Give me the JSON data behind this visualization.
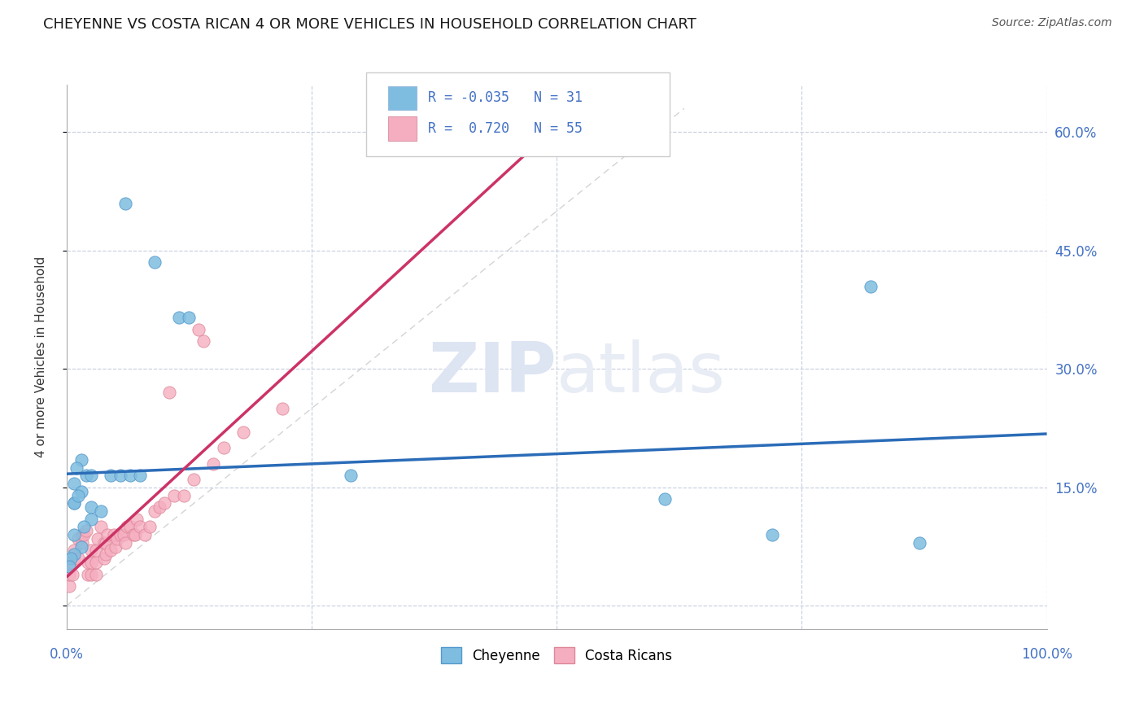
{
  "title": "CHEYENNE VS COSTA RICAN 4 OR MORE VEHICLES IN HOUSEHOLD CORRELATION CHART",
  "source": "Source: ZipAtlas.com",
  "ylabel_label": "4 or more Vehicles in Household",
  "legend_cheyenne": "Cheyenne",
  "legend_costa": "Costa Ricans",
  "r_cheyenne": -0.035,
  "n_cheyenne": 31,
  "r_costa": 0.72,
  "n_costa": 55,
  "xmin": 0.0,
  "xmax": 1.0,
  "ymin": -0.03,
  "ymax": 0.66,
  "ytick_vals": [
    0.0,
    0.15,
    0.3,
    0.45,
    0.6
  ],
  "ytick_labels": [
    "",
    "15.0%",
    "30.0%",
    "45.0%",
    "60.0%"
  ],
  "xtick_vals": [
    0.0,
    0.25,
    0.5,
    0.75,
    1.0
  ],
  "xtick_labels": [
    "0.0%",
    "",
    "",
    "",
    "100.0%"
  ],
  "color_cheyenne": "#7fbde0",
  "color_costa": "#f5aec0",
  "color_cheyenne_line": "#2b6cb8",
  "color_costa_line": "#cc3366",
  "cheyenne_x": [
    0.06,
    0.09,
    0.115,
    0.125,
    0.015,
    0.01,
    0.02,
    0.025,
    0.008,
    0.015,
    0.008,
    0.008,
    0.025,
    0.035,
    0.025,
    0.018,
    0.008,
    0.045,
    0.055,
    0.065,
    0.075,
    0.015,
    0.008,
    0.004,
    0.003,
    0.012,
    0.29,
    0.61,
    0.72,
    0.82,
    0.87
  ],
  "cheyenne_y": [
    0.51,
    0.435,
    0.365,
    0.365,
    0.185,
    0.175,
    0.165,
    0.165,
    0.155,
    0.145,
    0.13,
    0.13,
    0.125,
    0.12,
    0.11,
    0.1,
    0.09,
    0.165,
    0.165,
    0.165,
    0.165,
    0.075,
    0.065,
    0.06,
    0.05,
    0.14,
    0.165,
    0.135,
    0.09,
    0.405,
    0.08
  ],
  "costa_x": [
    0.003,
    0.003,
    0.006,
    0.006,
    0.008,
    0.008,
    0.012,
    0.012,
    0.016,
    0.016,
    0.018,
    0.02,
    0.022,
    0.022,
    0.025,
    0.025,
    0.025,
    0.03,
    0.03,
    0.03,
    0.032,
    0.035,
    0.038,
    0.038,
    0.04,
    0.04,
    0.042,
    0.045,
    0.048,
    0.05,
    0.052,
    0.055,
    0.058,
    0.06,
    0.062,
    0.065,
    0.068,
    0.07,
    0.072,
    0.075,
    0.08,
    0.085,
    0.09,
    0.095,
    0.1,
    0.105,
    0.11,
    0.12,
    0.13,
    0.135,
    0.14,
    0.15,
    0.16,
    0.18,
    0.22
  ],
  "costa_y": [
    0.025,
    0.04,
    0.04,
    0.055,
    0.06,
    0.07,
    0.06,
    0.085,
    0.08,
    0.09,
    0.09,
    0.095,
    0.04,
    0.055,
    0.04,
    0.055,
    0.07,
    0.04,
    0.055,
    0.07,
    0.085,
    0.1,
    0.06,
    0.08,
    0.065,
    0.08,
    0.09,
    0.07,
    0.09,
    0.075,
    0.085,
    0.09,
    0.09,
    0.08,
    0.1,
    0.1,
    0.09,
    0.09,
    0.11,
    0.1,
    0.09,
    0.1,
    0.12,
    0.125,
    0.13,
    0.27,
    0.14,
    0.14,
    0.16,
    0.35,
    0.335,
    0.18,
    0.2,
    0.22,
    0.25
  ]
}
